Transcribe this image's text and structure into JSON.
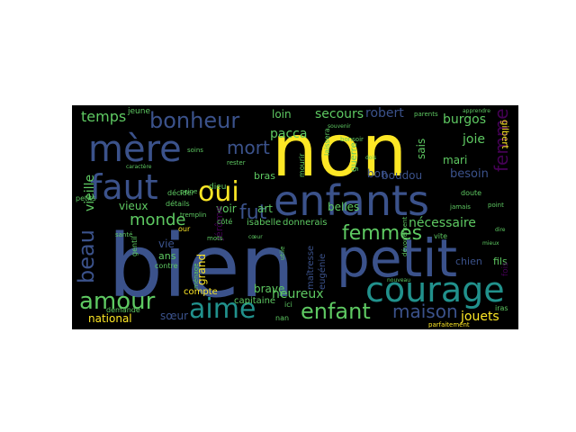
{
  "figure": {
    "background": "#000000",
    "page_background": "#ffffff",
    "palette": [
      "#fde725",
      "#3b528b",
      "#21918c",
      "#5ec962",
      "#440154",
      "#2c728e",
      "#addc30"
    ]
  },
  "words": [
    {
      "text": "bien",
      "color": "#3b528b"
    },
    {
      "text": "non",
      "color": "#fde725"
    },
    {
      "text": "enfants",
      "color": "#3b528b"
    },
    {
      "text": "petit",
      "color": "#3b528b"
    },
    {
      "text": "mère",
      "color": "#3b528b"
    },
    {
      "text": "faut",
      "color": "#3b528b"
    },
    {
      "text": "courage",
      "color": "#21918c"
    },
    {
      "text": "bonheur",
      "color": "#3b528b"
    },
    {
      "text": "aime",
      "color": "#21918c"
    },
    {
      "text": "amour",
      "color": "#5ec962"
    },
    {
      "text": "oui",
      "color": "#fde725"
    },
    {
      "text": "enfant",
      "color": "#5ec962"
    },
    {
      "text": "beau",
      "color": "#3b528b"
    },
    {
      "text": "fut",
      "color": "#3b528b"
    },
    {
      "text": "femmes",
      "color": "#5ec962"
    },
    {
      "text": "mort",
      "color": "#3b528b"
    },
    {
      "text": "monde",
      "color": "#5ec962"
    },
    {
      "text": "femme",
      "color": "#440154"
    },
    {
      "text": "maison",
      "color": "#3b528b"
    },
    {
      "text": "temps",
      "color": "#5ec962"
    },
    {
      "text": "heureux",
      "color": "#5ec962"
    },
    {
      "text": "nécessaire",
      "color": "#5ec962"
    },
    {
      "text": "jouets",
      "color": "#fde725"
    },
    {
      "text": "secours",
      "color": "#5ec962"
    },
    {
      "text": "robert",
      "color": "#3b528b"
    },
    {
      "text": "burgos",
      "color": "#5ec962"
    },
    {
      "text": "joie",
      "color": "#5ec962"
    },
    {
      "text": "loin",
      "color": "#5ec962"
    },
    {
      "text": "pacca",
      "color": "#5ec962"
    },
    {
      "text": "vieille",
      "color": "#5ec962"
    },
    {
      "text": "voir",
      "color": "#5ec962"
    },
    {
      "text": "art",
      "color": "#5ec962"
    },
    {
      "text": "belles",
      "color": "#5ec962"
    },
    {
      "text": "mari",
      "color": "#5ec962"
    },
    {
      "text": "besoin",
      "color": "#3b528b"
    },
    {
      "text": "sais",
      "color": "#5ec962"
    },
    {
      "text": "boudou",
      "color": "#3b528b"
    },
    {
      "text": "bon",
      "color": "#3b528b"
    },
    {
      "text": "vieux",
      "color": "#5ec962"
    },
    {
      "text": "grand",
      "color": "#fde725"
    },
    {
      "text": "brave",
      "color": "#5ec962"
    },
    {
      "text": "national",
      "color": "#fde725"
    },
    {
      "text": "sœur",
      "color": "#3b528b"
    },
    {
      "text": "ans",
      "color": "#5ec962"
    },
    {
      "text": "vie",
      "color": "#3b528b"
    },
    {
      "text": "jérôme",
      "color": "#440154"
    },
    {
      "text": "donnerais",
      "color": "#5ec962"
    },
    {
      "text": "isabelle",
      "color": "#5ec962"
    },
    {
      "text": "fils",
      "color": "#5ec962"
    },
    {
      "text": "chien",
      "color": "#3b528b"
    },
    {
      "text": "eugénie",
      "color": "#3b528b"
    },
    {
      "text": "maîtresse",
      "color": "#3b528b"
    },
    {
      "text": "bras",
      "color": "#5ec962"
    },
    {
      "text": "capitaine",
      "color": "#5ec962"
    },
    {
      "text": "compte",
      "color": "#fde725"
    },
    {
      "text": "gilbert",
      "color": "#fde725"
    },
    {
      "text": "guerre",
      "color": "#5ec962"
    },
    {
      "text": "jeune",
      "color": "#5ec962"
    },
    {
      "text": "dieu",
      "color": "#5ec962"
    },
    {
      "text": "côté",
      "color": "#5ec962"
    },
    {
      "text": "petits",
      "color": "#5ec962"
    },
    {
      "text": "contre",
      "color": "#5ec962"
    },
    {
      "text": "gentil",
      "color": "#5ec962"
    },
    {
      "text": "détails",
      "color": "#5ec962"
    },
    {
      "text": "décider",
      "color": "#5ec962"
    },
    {
      "text": "tremplin",
      "color": "#5ec962"
    },
    {
      "text": "ménage",
      "color": "#5ec962"
    },
    {
      "text": "parfaitement",
      "color": "#fde725"
    },
    {
      "text": "demande",
      "color": "#5ec962"
    },
    {
      "text": "jamais",
      "color": "#5ec962"
    },
    {
      "text": "point",
      "color": "#5ec962"
    },
    {
      "text": "vite",
      "color": "#5ec962"
    },
    {
      "text": "fois",
      "color": "#440154"
    },
    {
      "text": "iras",
      "color": "#5ec962"
    },
    {
      "text": "ici",
      "color": "#5ec962"
    },
    {
      "text": "nan",
      "color": "#5ec962"
    },
    {
      "text": "our",
      "color": "#fde725"
    },
    {
      "text": "doute",
      "color": "#5ec962"
    },
    {
      "text": "parents",
      "color": "#5ec962"
    },
    {
      "text": "laissera",
      "color": "#5ec962"
    },
    {
      "text": "mourir",
      "color": "#5ec962"
    },
    {
      "text": "bonsoir",
      "color": "#5ec962"
    },
    {
      "text": "santé",
      "color": "#5ec962"
    },
    {
      "text": "peine",
      "color": "#5ec962"
    },
    {
      "text": "mots",
      "color": "#5ec962"
    },
    {
      "text": "soins",
      "color": "#5ec962"
    },
    {
      "text": "rester",
      "color": "#5ec962"
    },
    {
      "text": "caractère",
      "color": "#5ec962"
    },
    {
      "text": "utile",
      "color": "#5ec962"
    },
    {
      "text": "nouveau",
      "color": "#5ec962"
    },
    {
      "text": "souvenir",
      "color": "#5ec962"
    },
    {
      "text": "dévouement",
      "color": "#5ec962"
    },
    {
      "text": "dois",
      "color": "#5ec962"
    },
    {
      "text": "apprendre",
      "color": "#5ec962"
    },
    {
      "text": "cœur",
      "color": "#5ec962"
    },
    {
      "text": "dire",
      "color": "#5ec962"
    },
    {
      "text": "mieux",
      "color": "#5ec962"
    }
  ]
}
